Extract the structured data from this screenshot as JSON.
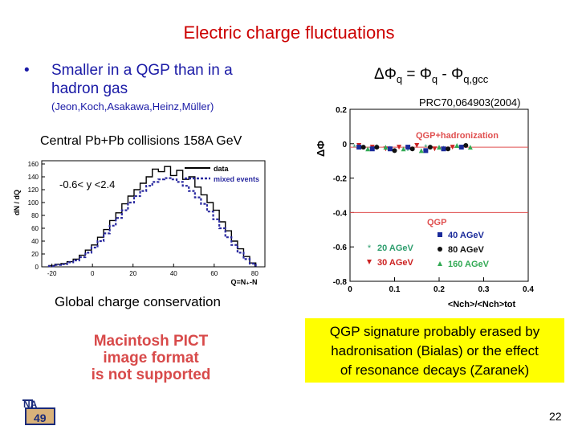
{
  "slide": {
    "title": "Electric charge fluctuations",
    "bullet_symbol": "•",
    "bullet_text": "Smaller in a QGP than in a hadron gas",
    "references": "(Jeon,Koch,Asakawa,Heinz,Müller)",
    "formula": {
      "lhs": "ΔΦ",
      "lhs_sub": "q",
      "eq": " = Φ",
      "mid_sub": "q",
      "minus": " - Φ",
      "rhs_sub": "q,gcc"
    },
    "prc_ref": "PRC70,064903(2004)",
    "central_label": "Central Pb+Pb collisions 158A GeV",
    "global_label": "Global charge conservation",
    "pict_lines": [
      "Macintosh PICT",
      "image format",
      "is not supported"
    ],
    "qgp_box_lines": [
      "QGP signature probably erased by",
      "hadronisation (Bialas) or the effect",
      "of resonance decays (Zaranek)"
    ],
    "page_number": "22",
    "logo_text": {
      "top": "NA",
      "bottom": "49"
    },
    "colors": {
      "title": "#cc0000",
      "bullet": "#1a1aa6",
      "highlight": "#ffff00",
      "pict": "#d84a4a"
    }
  },
  "chart_data": [
    {
      "type": "bar",
      "ylabel": "dN / dQ",
      "xlabel": "Q=N₊-N",
      "annotation": "-0.6< y <2.4",
      "xlim": [
        -25,
        85
      ],
      "ylim": [
        0,
        165
      ],
      "x_ticks": [
        "-20",
        "0",
        "20",
        "40",
        "60",
        "80"
      ],
      "y_ticks": [
        "0",
        "20",
        "40",
        "60",
        "80",
        "100",
        "120",
        "140",
        "160"
      ],
      "legend": [
        "data",
        "mixed events"
      ],
      "series": [
        {
          "name": "data",
          "style": "solid",
          "x": [
            -20,
            -17,
            -14,
            -11,
            -8,
            -5,
            -2,
            1,
            4,
            7,
            10,
            13,
            16,
            19,
            22,
            25,
            28,
            31,
            34,
            37,
            40,
            43,
            46,
            49,
            52,
            55,
            58,
            61,
            64,
            67,
            70,
            73,
            76,
            79
          ],
          "values": [
            2,
            4,
            5,
            8,
            12,
            18,
            26,
            34,
            46,
            58,
            72,
            84,
            98,
            110,
            120,
            130,
            140,
            152,
            148,
            156,
            142,
            150,
            136,
            140,
            124,
            112,
            100,
            88,
            70,
            56,
            40,
            28,
            16,
            6
          ]
        },
        {
          "name": "mixed events",
          "style": "dashed",
          "x": [
            -20,
            -17,
            -14,
            -11,
            -8,
            -5,
            -2,
            1,
            4,
            7,
            10,
            13,
            16,
            19,
            22,
            25,
            28,
            31,
            34,
            37,
            40,
            43,
            46,
            49,
            52,
            55,
            58,
            61,
            64,
            67,
            70,
            73,
            76,
            79
          ],
          "values": [
            1,
            3,
            4,
            7,
            10,
            15,
            22,
            30,
            40,
            52,
            64,
            76,
            88,
            100,
            110,
            118,
            126,
            132,
            136,
            138,
            136,
            132,
            126,
            118,
            108,
            98,
            86,
            74,
            60,
            46,
            34,
            22,
            12,
            5
          ]
        }
      ]
    },
    {
      "type": "scatter",
      "ylabel": "ΔΦ",
      "xlabel": "<Nch>/<Nch>tot",
      "xlim": [
        0,
        0.4
      ],
      "ylim": [
        -0.8,
        0.2
      ],
      "x_ticks": [
        "0",
        "0.1",
        "0.2",
        "0.3",
        "0.4"
      ],
      "y_ticks": [
        "0.2",
        "0",
        "-0.2",
        "-0.4",
        "-0.6",
        "-0.8"
      ],
      "annotations": [
        "QGP+hadronization",
        "QGP"
      ],
      "reference_lines": [
        {
          "name": "QGP+hadronization",
          "y": -0.02,
          "color": "#e05050"
        },
        {
          "name": "QGP",
          "y": -0.4,
          "color": "#e05050"
        }
      ],
      "series": [
        {
          "name": "20 AGeV",
          "color": "#2e9e6e",
          "marker": "star",
          "x": [
            0.01,
            0.03,
            0.06,
            0.09,
            0.13,
            0.17,
            0.21
          ],
          "values": [
            -0.02,
            -0.03,
            -0.02,
            -0.03,
            -0.04,
            -0.02,
            -0.03
          ]
        },
        {
          "name": "30 AGeV",
          "color": "#cc2222",
          "marker": "triangle-down",
          "x": [
            0.02,
            0.05,
            0.08,
            0.11,
            0.15,
            0.19,
            0.23
          ],
          "values": [
            -0.01,
            -0.02,
            -0.03,
            -0.02,
            -0.01,
            -0.03,
            -0.02
          ]
        },
        {
          "name": "40 AGeV",
          "color": "#1a2a9a",
          "marker": "square",
          "x": [
            0.02,
            0.05,
            0.09,
            0.13,
            0.17,
            0.21,
            0.25
          ],
          "values": [
            -0.02,
            -0.03,
            -0.03,
            -0.02,
            -0.04,
            -0.03,
            -0.02
          ]
        },
        {
          "name": "80 AGeV",
          "color": "#111111",
          "marker": "circle",
          "x": [
            0.03,
            0.06,
            0.1,
            0.14,
            0.18,
            0.22,
            0.26
          ],
          "values": [
            -0.02,
            -0.02,
            -0.04,
            -0.03,
            -0.02,
            -0.03,
            -0.01
          ]
        },
        {
          "name": "160 AGeV",
          "color": "#33aa55",
          "marker": "triangle-up",
          "x": [
            0.04,
            0.08,
            0.12,
            0.16,
            0.2,
            0.24,
            0.27
          ],
          "values": [
            -0.03,
            -0.02,
            -0.03,
            -0.04,
            -0.02,
            -0.01,
            -0.02
          ]
        }
      ]
    }
  ]
}
